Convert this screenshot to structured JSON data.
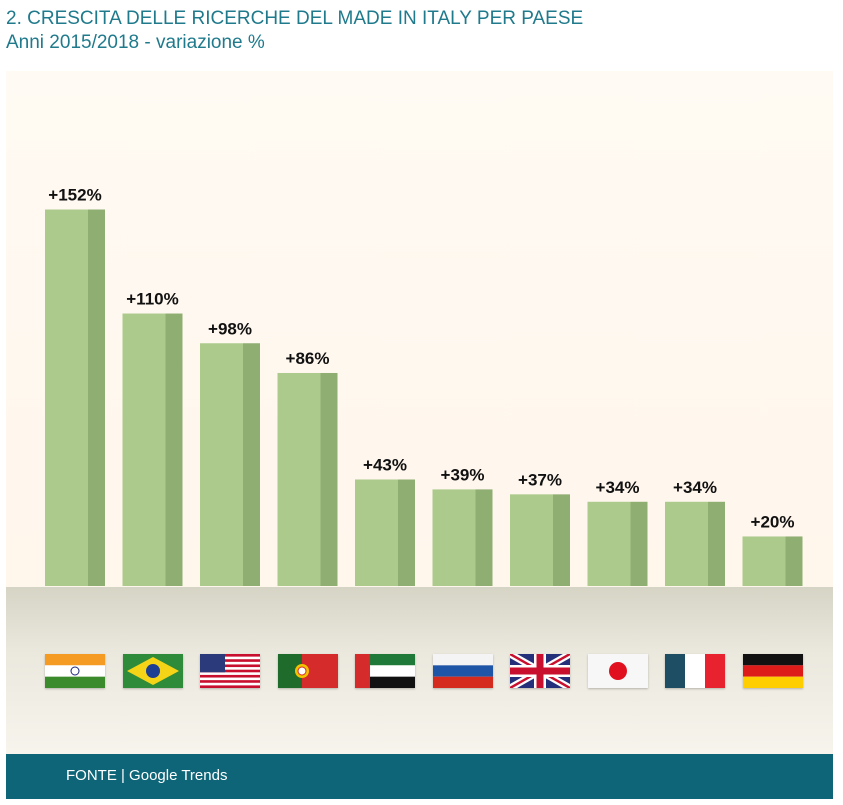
{
  "header": {
    "title": "2. CRESCITA DELLE RICERCHE DEL MADE IN ITALY PER PAESE",
    "subtitle": "Anni 2015/2018 - variazione %"
  },
  "chart_data": {
    "type": "bar",
    "categories": [
      "India",
      "Brasile",
      "Stati Uniti",
      "Portogallo",
      "Emirati Arabi Uniti",
      "Russia",
      "Regno Unito",
      "Giappone",
      "Francia",
      "Germania"
    ],
    "values": [
      152,
      110,
      98,
      86,
      43,
      39,
      37,
      34,
      34,
      20
    ],
    "data_labels": [
      "+152%",
      "+110%",
      "+98%",
      "+86%",
      "+43%",
      "+39%",
      "+37%",
      "+34%",
      "+34%",
      "+20%"
    ],
    "title": "2. CRESCITA DELLE RICERCHE DEL MADE IN ITALY PER PAESE",
    "subtitle": "Anni 2015/2018 - variazione %",
    "category_markers": "flags",
    "grid": false,
    "legend": "none",
    "colors": {
      "bar_face": "#acca8c",
      "bar_side": "#8fae72",
      "label": "#111111"
    }
  },
  "footer": {
    "source": "FONTE | Google Trends"
  }
}
